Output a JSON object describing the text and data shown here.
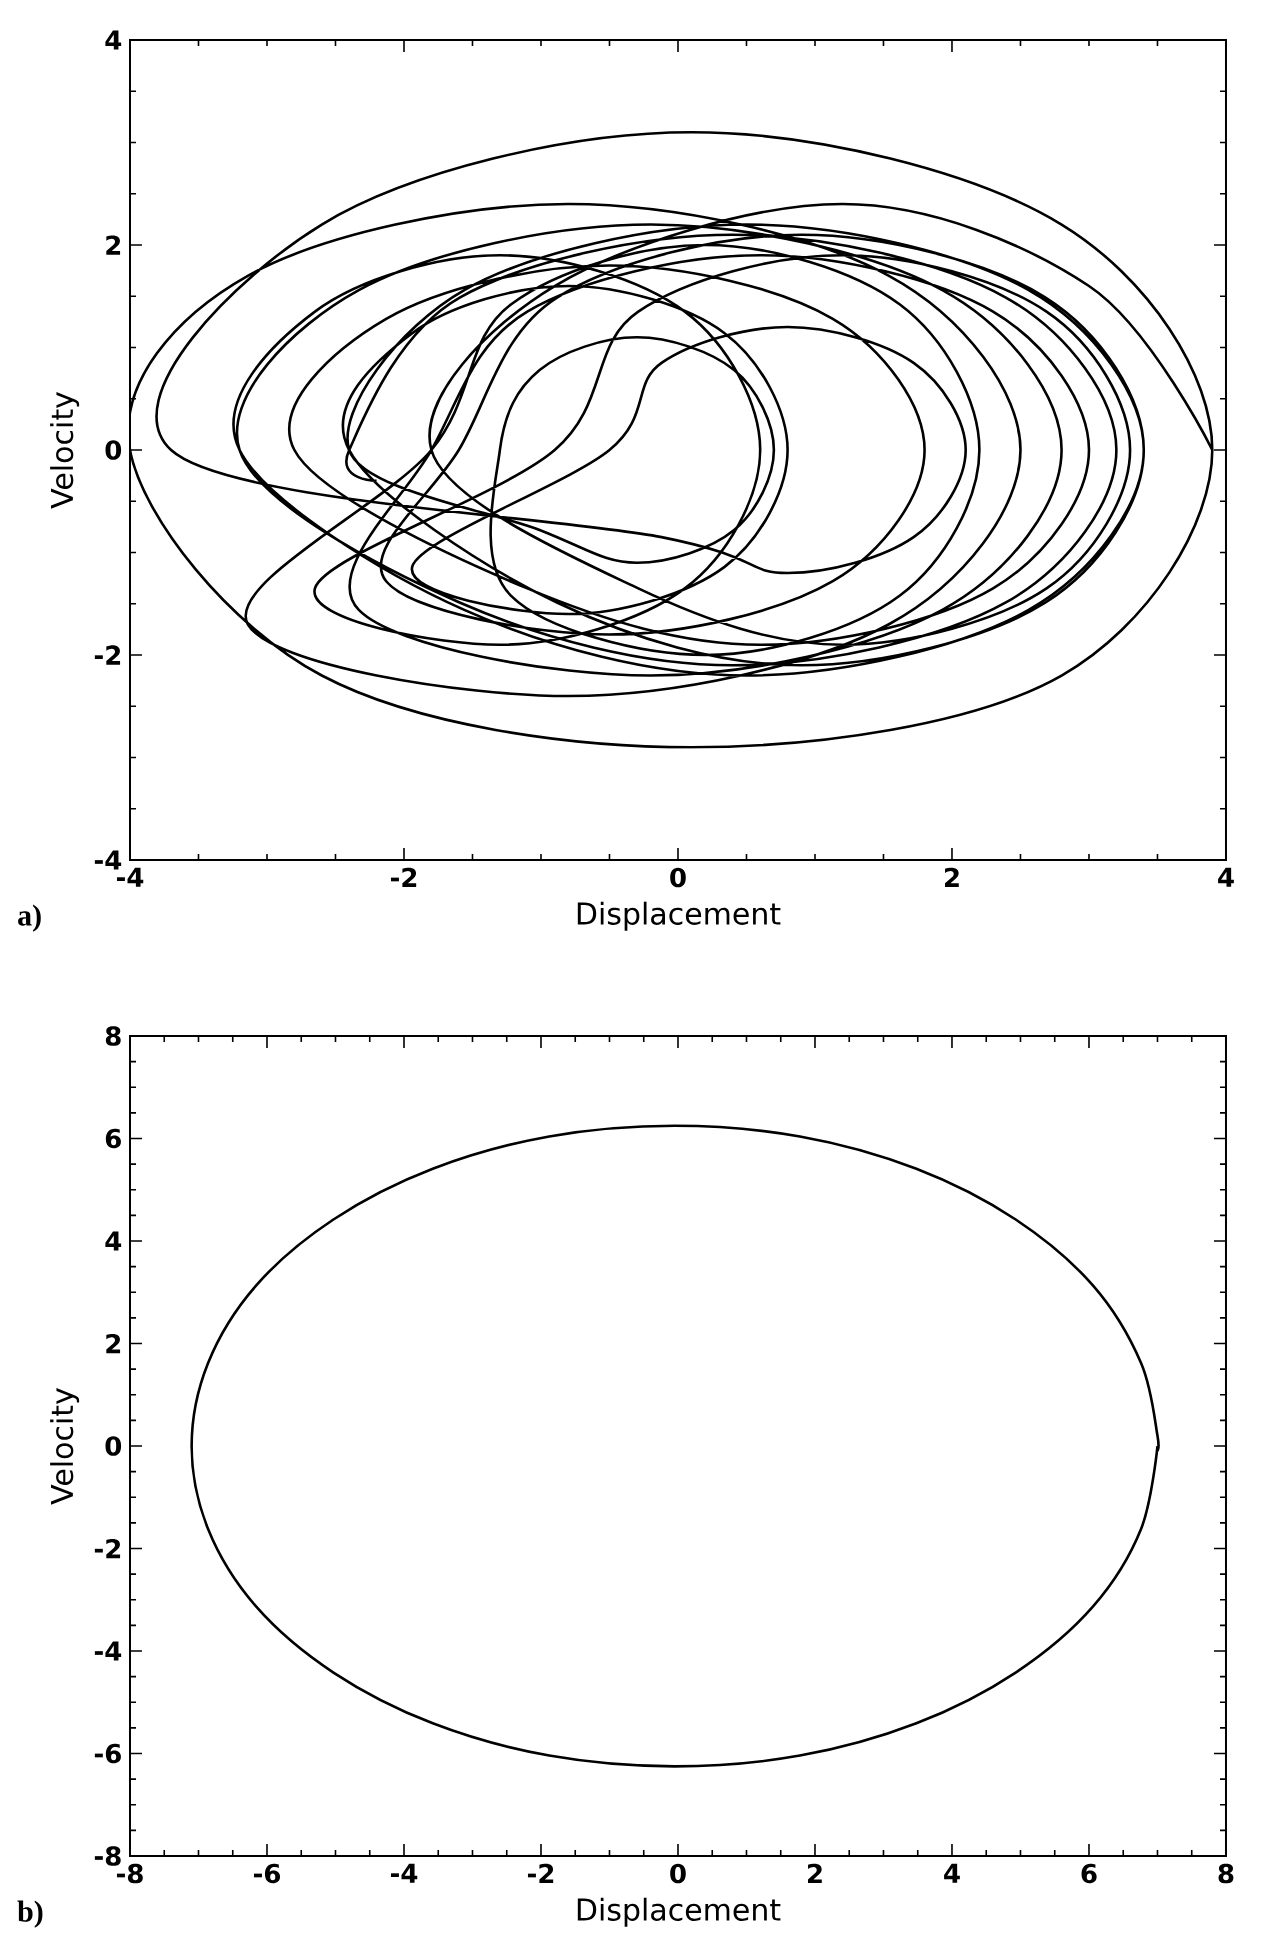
{
  "chart_data": [
    {
      "type": "line",
      "xlabel": "Displacement",
      "ylabel": "Velocity",
      "annotations": [
        "a)"
      ],
      "xlim": [
        -4,
        4
      ],
      "ylim": [
        -4,
        4
      ],
      "xticks": [
        -4,
        -2,
        0,
        2,
        4
      ],
      "yticks": [
        -4,
        -2,
        0,
        2,
        4
      ],
      "series": [
        {
          "color": "#000000",
          "x": [
            -2.2,
            -2.4,
            -1.59,
            0.4,
            2.39,
            3.2,
            2.39,
            0.4,
            -1.59,
            -3.2,
            -2.33,
            -0.2,
            1.93,
            2.8,
            1.93,
            -0.2,
            -2.33,
            -1.8,
            -1.1,
            0.6,
            2.3,
            3.0,
            2.3,
            0.6,
            -1.1,
            -2.8,
            -2.13,
            -0.5,
            1.13,
            1.8,
            1.13,
            -0.5,
            -2.13,
            -1.6,
            -0.88,
            0.9,
            2.68,
            3.4,
            2.68,
            0.9,
            -0.88,
            -2.4,
            -1.94,
            -0.8,
            0.34,
            0.8,
            0.34,
            -0.8,
            -1.94,
            -0.5,
            -0.12,
            0.8,
            1.72,
            2.1,
            1.72,
            0.8,
            -0.12,
            -3.7,
            -2.6,
            0.1,
            2.8,
            3.9,
            2.8,
            0.1,
            -2.6,
            -4.0,
            -3.14,
            -0.8,
            1.54,
            2.5,
            1.54,
            -0.8,
            -3.14,
            -1.8,
            -1.22,
            0.2,
            1.62,
            2.2,
            1.62,
            0.2,
            -1.22,
            -1.3,
            -1.01,
            -0.3,
            0.41,
            0.7,
            0.41,
            -0.3,
            -1.01,
            -2.4,
            -1.56,
            0.5,
            2.56,
            3.4,
            2.56,
            0.5,
            -1.56,
            -3.2,
            -2.65,
            -1.3,
            0.05,
            0.6,
            0.05,
            -1.3,
            -2.65,
            -0.9,
            -0.29,
            1.2,
            2.69,
            3.3,
            2.69,
            1.2,
            -0.29,
            -1.8,
            -0.9,
            1.2,
            3.0,
            3.9
          ],
          "values": [
            -0.3,
            0,
            1.49,
            2.1,
            1.49,
            0,
            -1.49,
            -2.1,
            -1.49,
            0,
            1.56,
            2.2,
            1.56,
            0,
            -1.56,
            -2.2,
            -1.56,
            0,
            1.35,
            1.9,
            1.35,
            0,
            -1.35,
            -1.9,
            -1.35,
            0,
            1.28,
            1.8,
            1.28,
            0,
            -1.28,
            -1.8,
            -1.28,
            0,
            1.49,
            2.1,
            1.49,
            0,
            -1.49,
            -2.1,
            -1.49,
            0,
            1.14,
            1.6,
            1.14,
            0,
            -1.14,
            -1.6,
            -1.14,
            0,
            0.85,
            1.2,
            0.85,
            0,
            -0.85,
            -1.2,
            -0.85,
            0,
            2.2,
            3.1,
            2.2,
            0,
            -2.2,
            -2.9,
            -2.2,
            0,
            1.7,
            2.4,
            1.7,
            0,
            -1.7,
            -2.4,
            -1.7,
            0,
            1.42,
            2.0,
            1.42,
            0,
            -1.42,
            -2.0,
            -1.42,
            0,
            0.78,
            1.1,
            0.78,
            0,
            -0.78,
            -1.1,
            -0.78,
            0,
            1.56,
            2.2,
            1.56,
            0,
            -1.56,
            -2.2,
            -1.56,
            0,
            1.35,
            1.9,
            1.35,
            0,
            -1.35,
            -1.9,
            -1.35,
            0,
            1.35,
            1.9,
            1.35,
            0,
            -1.35,
            -1.9,
            -1.35,
            0,
            1.6,
            2.4,
            1.6,
            0
          ]
        }
      ]
    },
    {
      "type": "line",
      "xlabel": "Displacement",
      "ylabel": "Velocity",
      "annotations": [
        "b)"
      ],
      "xlim": [
        -8,
        8
      ],
      "ylim": [
        -8,
        8
      ],
      "xticks": [
        -8,
        -6,
        -4,
        -2,
        0,
        2,
        4,
        6,
        8
      ],
      "yticks": [
        -8,
        -6,
        -4,
        -2,
        0,
        2,
        4,
        6,
        8
      ],
      "series": [
        {
          "color": "#000000",
          "x": [
            7.0,
            6.76,
            6.06,
            4.93,
            3.48,
            1.78,
            -0.05,
            -1.88,
            -3.58,
            -5.03,
            -6.16,
            -6.86,
            -7.1,
            -6.86,
            -6.16,
            -5.03,
            -3.58,
            -1.88,
            -0.05,
            1.78,
            3.48,
            4.93,
            6.06,
            6.76,
            7.0,
            6.99
          ],
          "values": [
            0,
            -1.62,
            -3.13,
            -4.42,
            -5.41,
            -6.04,
            -6.25,
            -6.04,
            -5.41,
            -4.42,
            -3.13,
            -1.62,
            0,
            1.62,
            3.13,
            4.42,
            5.41,
            6.04,
            6.25,
            6.04,
            5.41,
            4.42,
            3.13,
            1.62,
            0.2,
            -0.1
          ]
        }
      ]
    }
  ]
}
